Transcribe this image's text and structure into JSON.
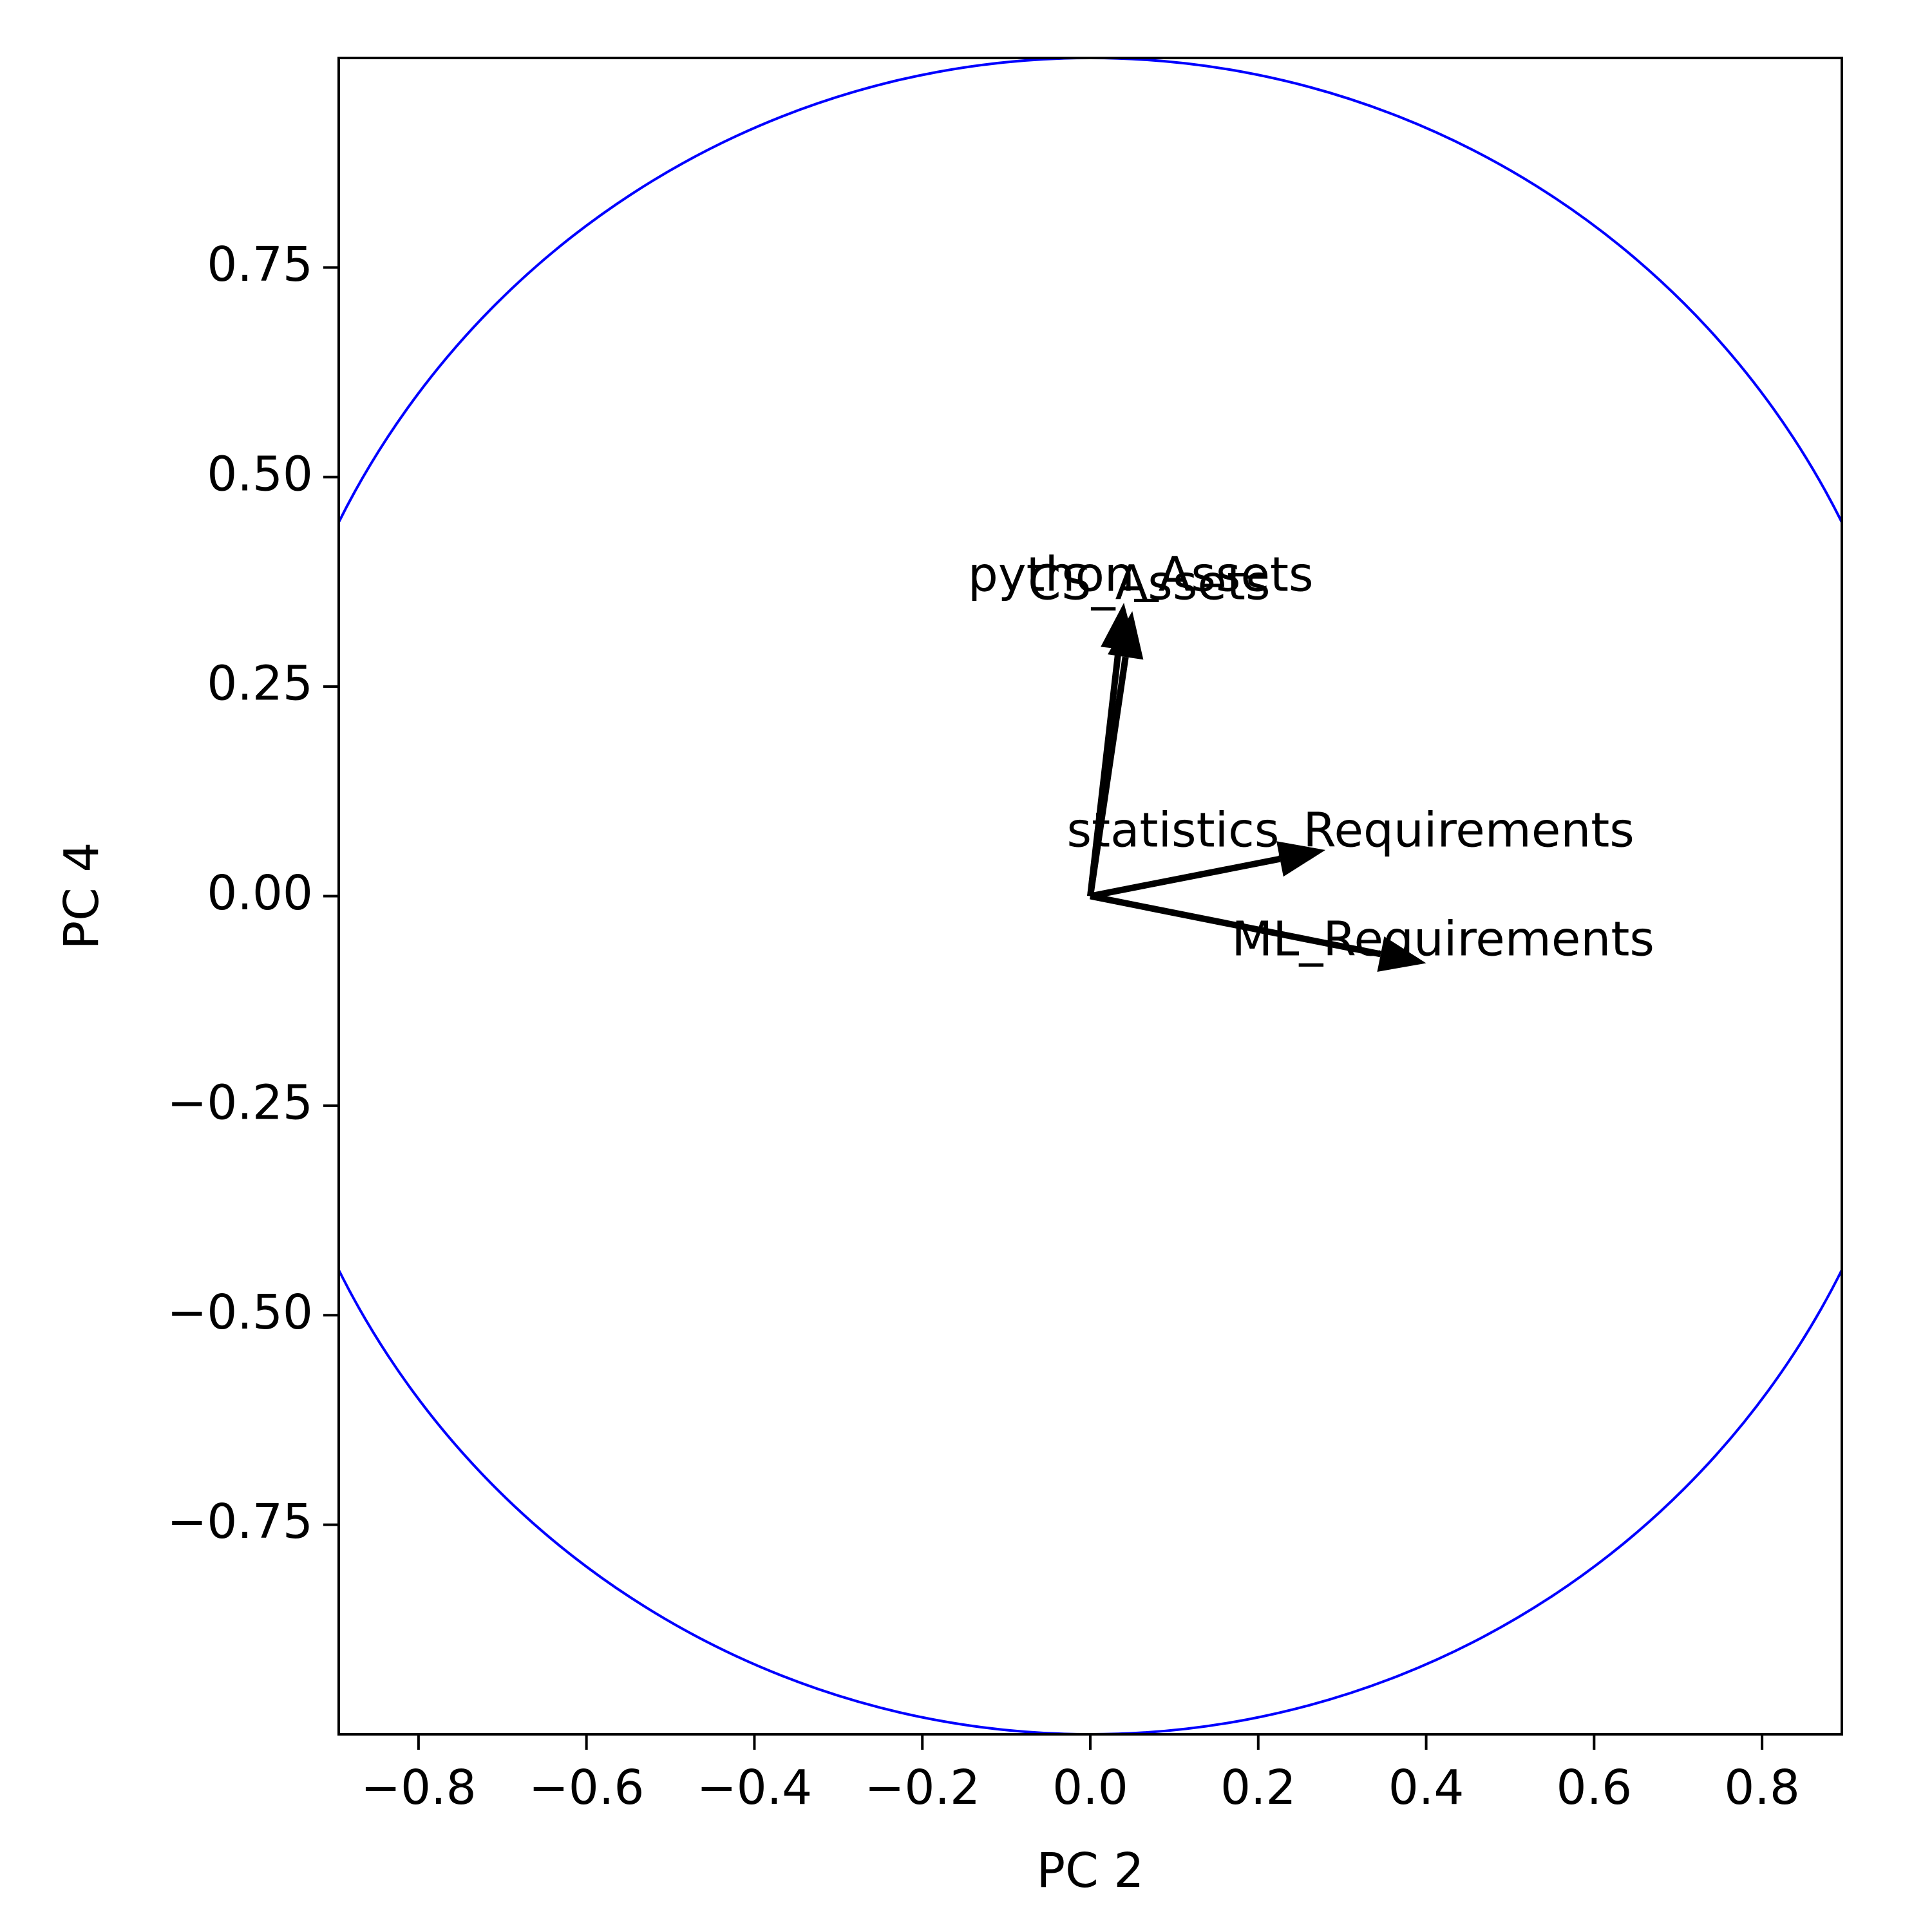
{
  "chart_data": {
    "type": "scatter",
    "subtype": "correlation-circle",
    "title": "",
    "xlabel": "PC 2",
    "ylabel": "PC 4",
    "xlim": [
      -0.895,
      0.895
    ],
    "ylim": [
      -1.0,
      1.0
    ],
    "xticks": [
      -0.8,
      -0.6,
      -0.4,
      -0.2,
      0.0,
      0.2,
      0.4,
      0.6,
      0.8
    ],
    "xtick_labels": [
      "−0.8",
      "−0.6",
      "−0.4",
      "−0.2",
      "0.0",
      "0.2",
      "0.4",
      "0.6",
      "0.8"
    ],
    "yticks": [
      -0.75,
      -0.5,
      -0.25,
      0.0,
      0.25,
      0.5,
      0.75
    ],
    "ytick_labels": [
      "−0.75",
      "−0.50",
      "−0.25",
      "0.00",
      "0.25",
      "0.50",
      "0.75"
    ],
    "grid": false,
    "circle": {
      "radius": 1.0,
      "color": "#0000ff"
    },
    "arrow_color": "#000000",
    "vectors": [
      {
        "label": "python_Assets",
        "x": 0.04,
        "y": 0.35,
        "label_x": 0.06,
        "label_y": 0.38
      },
      {
        "label": "CS_Assets",
        "x": 0.05,
        "y": 0.34,
        "label_x": 0.07,
        "label_y": 0.37
      },
      {
        "label": "statistics_Requirements",
        "x": 0.28,
        "y": 0.055,
        "label_x": 0.31,
        "label_y": 0.075
      },
      {
        "label": "ML_Requirements",
        "x": 0.4,
        "y": -0.08,
        "label_x": 0.42,
        "label_y": -0.055
      }
    ]
  }
}
